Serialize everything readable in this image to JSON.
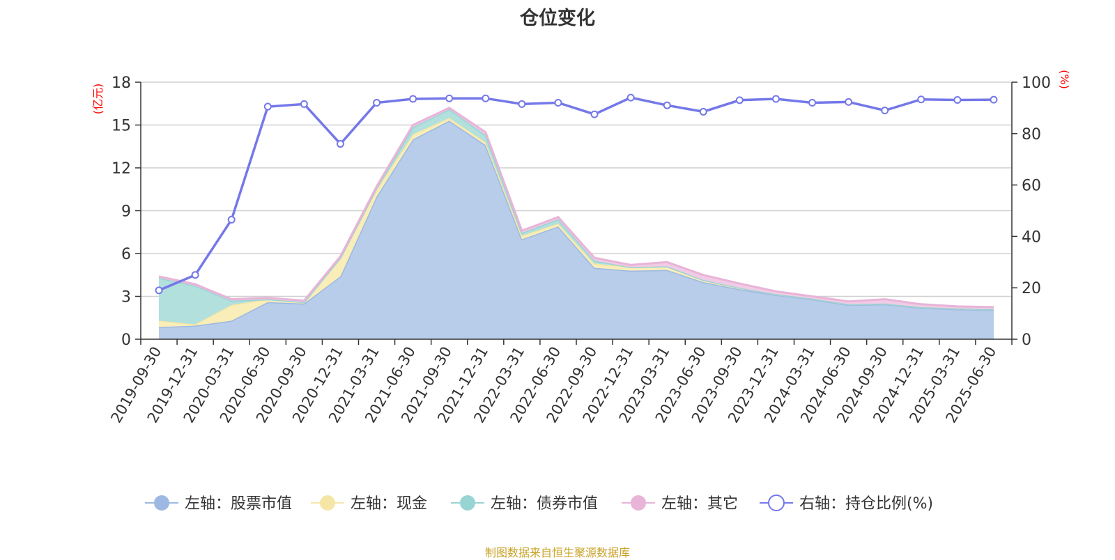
{
  "chart_data": {
    "type": "area",
    "title": "仓位变化",
    "source": "制图数据来自恒生聚源数据库",
    "left_axis": {
      "unit": "(亿元)",
      "ticks": [
        0,
        3,
        6,
        9,
        12,
        15,
        18
      ],
      "ylim": [
        0,
        18
      ]
    },
    "right_axis": {
      "unit": "(%)",
      "ticks": [
        0,
        20,
        40,
        60,
        80,
        100
      ],
      "ylim": [
        0,
        100
      ]
    },
    "unit_color": "#ff0000",
    "grid": true,
    "legend_position": "bottom",
    "categories": [
      "2019-09-30",
      "2019-12-31",
      "2020-03-31",
      "2020-06-30",
      "2020-09-30",
      "2020-12-31",
      "2021-03-31",
      "2021-06-30",
      "2021-09-30",
      "2021-12-31",
      "2022-03-31",
      "2022-06-30",
      "2022-09-30",
      "2022-12-31",
      "2023-03-31",
      "2023-06-30",
      "2023-09-30",
      "2023-12-31",
      "2024-03-31",
      "2024-06-30",
      "2024-09-30",
      "2024-12-31",
      "2025-03-31",
      "2025-06-30"
    ],
    "stacked_series": [
      {
        "name": "左轴：股票市值",
        "color": "#9db8e2",
        "fill": "#b7cdea",
        "values": [
          0.85,
          0.95,
          1.3,
          2.6,
          2.5,
          4.4,
          10.0,
          14.0,
          15.3,
          13.6,
          7.0,
          7.9,
          5.0,
          4.8,
          4.85,
          4.0,
          3.5,
          3.1,
          2.8,
          2.4,
          2.45,
          2.2,
          2.1,
          2.05
        ]
      },
      {
        "name": "左轴：现金",
        "color": "#f5e6a6",
        "fill": "#f9edb8",
        "values": [
          0.45,
          0.1,
          1.1,
          0.2,
          0.1,
          1.3,
          0.5,
          0.35,
          0.2,
          0.2,
          0.25,
          0.2,
          0.3,
          0.25,
          0.25,
          0.15,
          0.1,
          0.05,
          0.05,
          0.05,
          0.05,
          0.05,
          0.05,
          0.05
        ]
      },
      {
        "name": "左轴：债券市值",
        "color": "#99d4d4",
        "fill": "#b1e0dd",
        "values": [
          3.0,
          2.7,
          0.3,
          0.0,
          0.0,
          0.0,
          0.1,
          0.5,
          0.6,
          0.5,
          0.2,
          0.3,
          0.2,
          0.0,
          0.0,
          0.0,
          0.0,
          0.0,
          0.0,
          0.0,
          0.0,
          0.0,
          0.0,
          0.0
        ]
      },
      {
        "name": "左轴：其它",
        "color": "#e8b4d8",
        "fill": "#f1cbe5",
        "values": [
          0.1,
          0.1,
          0.1,
          0.1,
          0.1,
          0.1,
          0.1,
          0.15,
          0.1,
          0.2,
          0.15,
          0.15,
          0.2,
          0.15,
          0.3,
          0.35,
          0.3,
          0.2,
          0.15,
          0.2,
          0.3,
          0.2,
          0.15,
          0.15
        ]
      }
    ],
    "line_series": {
      "name": "右轴：持仓比例(%)",
      "color": "#7478e8",
      "values": [
        19,
        25,
        46.5,
        90.5,
        91.5,
        76,
        92,
        93.5,
        93.7,
        93.7,
        91.5,
        92,
        87.5,
        94,
        91,
        88.5,
        93,
        93.5,
        92,
        92.3,
        89,
        93.3,
        93.1,
        93.2
      ]
    }
  }
}
